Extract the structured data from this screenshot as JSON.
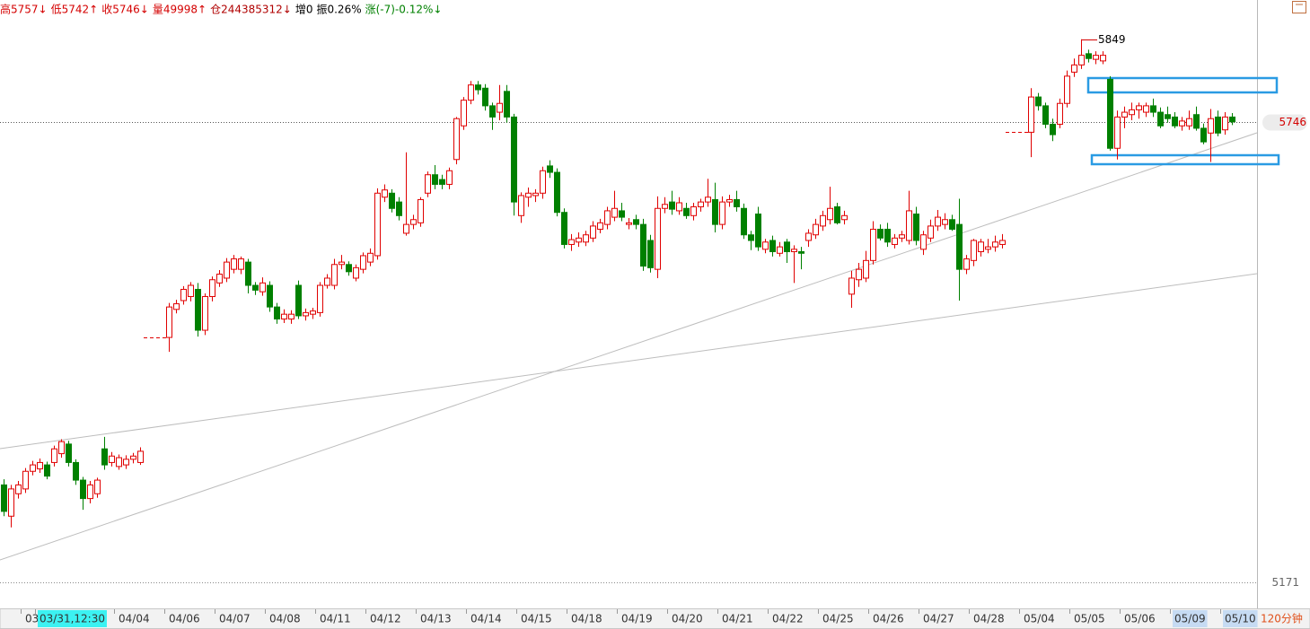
{
  "header_items": [
    {
      "text": "高5757↓",
      "color": "#d40000"
    },
    {
      "text": "低5742↑",
      "color": "#d40000"
    },
    {
      "text": "收5746↓",
      "color": "#d40000"
    },
    {
      "text": "量49998↑",
      "color": "#d40000"
    },
    {
      "text": "仓244385312↓",
      "color": "#b00000"
    },
    {
      "text": "增0",
      "color": "#000000"
    },
    {
      "text": "振0.26%",
      "color": "#000000"
    },
    {
      "text": "涨(-7)-0.12%↓",
      "color": "#008000"
    }
  ],
  "period": "120分钟",
  "chart_data": {
    "type": "candlestick",
    "up_color": "#e00000",
    "down_color": "#008000",
    "ylim": [
      5139,
      5898
    ],
    "yticks": [
      5171
    ],
    "categories": [
      null,
      null,
      null,
      "03/",
      null,
      "03/31,12:30",
      null,
      null,
      null,
      null,
      null,
      null,
      null,
      null,
      null,
      null,
      "04/04",
      null,
      null,
      null,
      null,
      null,
      null,
      "04/06",
      null,
      null,
      null,
      null,
      null,
      null,
      "04/07",
      null,
      null,
      null,
      null,
      null,
      null,
      "04/08",
      null,
      null,
      null,
      null,
      null,
      null,
      "04/11",
      null,
      null,
      null,
      null,
      null,
      null,
      "04/12",
      null,
      null,
      null,
      null,
      null,
      null,
      "04/13",
      null,
      null,
      null,
      null,
      null,
      null,
      "04/14",
      null,
      null,
      null,
      null,
      null,
      null,
      "04/15",
      null,
      null,
      null,
      null,
      null,
      null,
      "04/18",
      null,
      null,
      null,
      null,
      null,
      null,
      "04/19",
      null,
      null,
      null,
      null,
      null,
      null,
      "04/20",
      null,
      null,
      null,
      null,
      null,
      null,
      "04/21",
      null,
      null,
      null,
      null,
      null,
      null,
      "04/22",
      null,
      null,
      null,
      null,
      null,
      null,
      "04/25",
      null,
      null,
      null,
      null,
      null,
      null,
      "04/26",
      null,
      null,
      null,
      null,
      null,
      null,
      "04/27",
      null,
      null,
      null,
      null,
      null,
      null,
      "04/28",
      null,
      null,
      null,
      null,
      null,
      null,
      "05/04",
      null,
      null,
      null,
      null,
      null,
      null,
      "05/05",
      null,
      null,
      null,
      null,
      null,
      null,
      "05/06",
      null,
      null,
      null,
      null,
      null,
      null,
      "05/09",
      null,
      null,
      null,
      null,
      null,
      null,
      "05/10",
      null
    ],
    "category_highlights": [
      {
        "index": 5,
        "color": "#3cf2f2"
      },
      {
        "index": 163,
        "color": "#c6dbf3"
      },
      {
        "index": 170,
        "color": "#c6dbf3"
      }
    ],
    "candles": [
      [
        5293,
        5300,
        5254,
        5260
      ],
      [
        5254,
        5293,
        5240,
        5288
      ],
      [
        5282,
        5298,
        5276,
        5293
      ],
      [
        5288,
        5314,
        5283,
        5310
      ],
      [
        5310,
        5323,
        5305,
        5318
      ],
      [
        5313,
        5326,
        5308,
        5321
      ],
      [
        5318,
        5322,
        5300,
        5304
      ],
      [
        5321,
        5342,
        5316,
        5338
      ],
      [
        5332,
        5350,
        5327,
        5347
      ],
      [
        5344,
        5348,
        5316,
        5321
      ],
      [
        5321,
        5325,
        5293,
        5299
      ],
      [
        5299,
        5303,
        5262,
        5276
      ],
      [
        5276,
        5298,
        5270,
        5293
      ],
      [
        5282,
        5302,
        5277,
        5299
      ],
      [
        5338,
        5353,
        5312,
        5318
      ],
      [
        5321,
        5334,
        5316,
        5329
      ],
      [
        5316,
        5331,
        5312,
        5327
      ],
      [
        5318,
        5330,
        5313,
        5325
      ],
      [
        5325,
        5333,
        5320,
        5329
      ],
      [
        5321,
        5340,
        5318,
        5335
      ],
      null,
      null,
      null,
      [
        5477,
        5520,
        5459,
        5515
      ],
      [
        5512,
        5524,
        5507,
        5519
      ],
      [
        5523,
        5541,
        5518,
        5537
      ],
      [
        5528,
        5546,
        5522,
        5542
      ],
      [
        5537,
        5545,
        5478,
        5486
      ],
      [
        5486,
        5532,
        5480,
        5528
      ],
      [
        5528,
        5553,
        5522,
        5549
      ],
      [
        5545,
        5561,
        5540,
        5556
      ],
      [
        5551,
        5576,
        5546,
        5571
      ],
      [
        5562,
        5580,
        5557,
        5575
      ],
      [
        5562,
        5578,
        5556,
        5575
      ],
      [
        5571,
        5575,
        5532,
        5542
      ],
      [
        5542,
        5546,
        5530,
        5536
      ],
      [
        5534,
        5552,
        5529,
        5545
      ],
      [
        5542,
        5547,
        5509,
        5515
      ],
      [
        5515,
        5520,
        5494,
        5500
      ],
      [
        5500,
        5512,
        5495,
        5506
      ],
      [
        5500,
        5511,
        5494,
        5506
      ],
      [
        5542,
        5548,
        5500,
        5504
      ],
      [
        5504,
        5513,
        5498,
        5508
      ],
      [
        5506,
        5514,
        5500,
        5510
      ],
      [
        5508,
        5546,
        5503,
        5542
      ],
      [
        5542,
        5556,
        5538,
        5551
      ],
      [
        5542,
        5575,
        5537,
        5568
      ],
      [
        5568,
        5580,
        5562,
        5571
      ],
      [
        5568,
        5572,
        5554,
        5559
      ],
      [
        5551,
        5568,
        5547,
        5564
      ],
      [
        5562,
        5583,
        5557,
        5579
      ],
      [
        5571,
        5588,
        5566,
        5582
      ],
      [
        5579,
        5663,
        5574,
        5657
      ],
      [
        5652,
        5668,
        5646,
        5661
      ],
      [
        5657,
        5662,
        5633,
        5638
      ],
      [
        5646,
        5652,
        5623,
        5629
      ],
      [
        5607,
        5708,
        5604,
        5618
      ],
      [
        5618,
        5630,
        5612,
        5624
      ],
      [
        5620,
        5652,
        5615,
        5649
      ],
      [
        5657,
        5684,
        5652,
        5680
      ],
      [
        5680,
        5692,
        5662,
        5668
      ],
      [
        5674,
        5680,
        5662,
        5668
      ],
      [
        5668,
        5689,
        5662,
        5685
      ],
      [
        5699,
        5752,
        5693,
        5750
      ],
      [
        5741,
        5777,
        5736,
        5773
      ],
      [
        5773,
        5797,
        5768,
        5792
      ],
      [
        5792,
        5797,
        5780,
        5786
      ],
      [
        5788,
        5793,
        5760,
        5766
      ],
      [
        5766,
        5770,
        5736,
        5752
      ],
      [
        5758,
        5792,
        5748,
        5769
      ],
      [
        5784,
        5792,
        5745,
        5752
      ],
      [
        5752,
        5756,
        5629,
        5646
      ],
      [
        5629,
        5658,
        5620,
        5654
      ],
      [
        5652,
        5664,
        5640,
        5657
      ],
      [
        5654,
        5662,
        5646,
        5657
      ],
      [
        5657,
        5690,
        5650,
        5685
      ],
      [
        5691,
        5698,
        5676,
        5683
      ],
      [
        5683,
        5688,
        5628,
        5633
      ],
      [
        5633,
        5638,
        5588,
        5593
      ],
      [
        5593,
        5606,
        5585,
        5599
      ],
      [
        5596,
        5608,
        5590,
        5601
      ],
      [
        5596,
        5610,
        5591,
        5605
      ],
      [
        5601,
        5622,
        5596,
        5616
      ],
      [
        5612,
        5625,
        5607,
        5620
      ],
      [
        5618,
        5640,
        5612,
        5635
      ],
      [
        5627,
        5660,
        5622,
        5638
      ],
      [
        5635,
        5645,
        5622,
        5627
      ],
      [
        5618,
        5626,
        5612,
        5620
      ],
      [
        5624,
        5630,
        5612,
        5618
      ],
      [
        5618,
        5625,
        5560,
        5566
      ],
      [
        5598,
        5605,
        5558,
        5564
      ],
      [
        5562,
        5653,
        5551,
        5638
      ],
      [
        5638,
        5652,
        5632,
        5643
      ],
      [
        5646,
        5660,
        5630,
        5637
      ],
      [
        5635,
        5652,
        5630,
        5645
      ],
      [
        5638,
        5645,
        5625,
        5629
      ],
      [
        5629,
        5645,
        5623,
        5640
      ],
      [
        5640,
        5650,
        5634,
        5646
      ],
      [
        5646,
        5675,
        5640,
        5652
      ],
      [
        5649,
        5670,
        5608,
        5618
      ],
      [
        5618,
        5653,
        5612,
        5646
      ],
      [
        5646,
        5655,
        5640,
        5649
      ],
      [
        5649,
        5660,
        5634,
        5640
      ],
      [
        5638,
        5644,
        5600,
        5605
      ],
      [
        5605,
        5610,
        5586,
        5598
      ],
      [
        5631,
        5640,
        5585,
        5590
      ],
      [
        5587,
        5600,
        5582,
        5596
      ],
      [
        5598,
        5604,
        5578,
        5584
      ],
      [
        5582,
        5596,
        5578,
        5590
      ],
      [
        5596,
        5600,
        5570,
        5584
      ],
      [
        5584,
        5592,
        5545,
        5587
      ],
      [
        5584,
        5590,
        5562,
        5582
      ],
      [
        5598,
        5612,
        5590,
        5607
      ],
      [
        5605,
        5625,
        5600,
        5618
      ],
      [
        5616,
        5635,
        5610,
        5629
      ],
      [
        5624,
        5665,
        5618,
        5638
      ],
      [
        5640,
        5645,
        5618,
        5620
      ],
      [
        5624,
        5635,
        5618,
        5629
      ],
      [
        5531,
        5560,
        5514,
        5551
      ],
      [
        5549,
        5570,
        5540,
        5562
      ],
      [
        5551,
        5585,
        5546,
        5573
      ],
      [
        5573,
        5622,
        5568,
        5612
      ],
      [
        5612,
        5618,
        5598,
        5601
      ],
      [
        5612,
        5620,
        5590,
        5596
      ],
      [
        5593,
        5606,
        5588,
        5601
      ],
      [
        5601,
        5610,
        5596,
        5605
      ],
      [
        5598,
        5660,
        5593,
        5635
      ],
      [
        5631,
        5640,
        5592,
        5598
      ],
      [
        5587,
        5610,
        5580,
        5605
      ],
      [
        5601,
        5624,
        5596,
        5616
      ],
      [
        5616,
        5636,
        5610,
        5627
      ],
      [
        5618,
        5632,
        5612,
        5624
      ],
      [
        5624,
        5630,
        5610,
        5612
      ],
      [
        5618,
        5650,
        5523,
        5562
      ],
      [
        5562,
        5580,
        5556,
        5575
      ],
      [
        5573,
        5600,
        5566,
        5598
      ],
      [
        5584,
        5600,
        5578,
        5596
      ],
      [
        5587,
        5600,
        5582,
        5590
      ],
      [
        5590,
        5604,
        5584,
        5596
      ],
      [
        5593,
        5606,
        5588,
        5598
      ],
      null,
      null,
      null,
      [
        5733,
        5788,
        5702,
        5777
      ],
      [
        5777,
        5782,
        5760,
        5766
      ],
      [
        5766,
        5770,
        5738,
        5743
      ],
      [
        5743,
        5750,
        5722,
        5730
      ],
      [
        5743,
        5775,
        5738,
        5769
      ],
      [
        5769,
        5810,
        5764,
        5803
      ],
      [
        5808,
        5825,
        5802,
        5817
      ],
      [
        5817,
        5849,
        5812,
        5829
      ],
      [
        5831,
        5836,
        5820,
        5825
      ],
      [
        5824,
        5834,
        5818,
        5829
      ],
      [
        5822,
        5834,
        5818,
        5829
      ],
      [
        5799,
        5803,
        5710,
        5713
      ],
      [
        5713,
        5760,
        5699,
        5752
      ],
      [
        5752,
        5765,
        5738,
        5758
      ],
      [
        5755,
        5770,
        5748,
        5761
      ],
      [
        5761,
        5770,
        5750,
        5766
      ],
      [
        5758,
        5770,
        5752,
        5766
      ],
      [
        5766,
        5775,
        5752,
        5758
      ],
      [
        5758,
        5764,
        5738,
        5741
      ],
      [
        5755,
        5765,
        5745,
        5750
      ],
      [
        5752,
        5758,
        5738,
        5741
      ],
      [
        5741,
        5752,
        5735,
        5747
      ],
      [
        5741,
        5760,
        5736,
        5750
      ],
      [
        5755,
        5765,
        5735,
        5738
      ],
      [
        5738,
        5744,
        5718,
        5721
      ],
      [
        5732,
        5762,
        5696,
        5750
      ],
      [
        5752,
        5760,
        5728,
        5732
      ],
      [
        5736,
        5758,
        5730,
        5752
      ],
      [
        5752,
        5757,
        5742,
        5746
      ]
    ],
    "peak_index": 150
  }
}
